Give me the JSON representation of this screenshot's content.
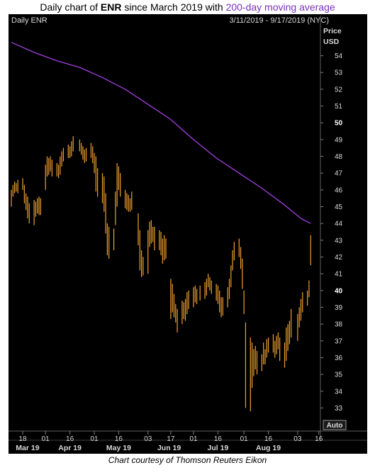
{
  "title": {
    "prefix": "Daily chart of ",
    "ticker": "ENR",
    "middle": " since March 2019 with ",
    "ma_label": "200-day moving average"
  },
  "header": {
    "left": "Daily ENR",
    "right": "3/11/2019 - 9/17/2019 (NYC)"
  },
  "caption": "Chart courtesy of Thomson Reuters Eikon",
  "colors": {
    "price": "#f0a030",
    "ma": "#a040e0",
    "panel": "#000000",
    "axis_text": "#d8d8d8"
  },
  "chart_data": {
    "type": "ohlc",
    "y_axis_title": [
      "Price",
      "USD"
    ],
    "ylim": [
      32.3,
      55.8
    ],
    "y_ticks": [
      33,
      34,
      35,
      36,
      37,
      38,
      39,
      40,
      41,
      42,
      43,
      44,
      45,
      46,
      47,
      48,
      49,
      50,
      51,
      52,
      53,
      54
    ],
    "y_bold_ticks": [
      40,
      50
    ],
    "x_range": [
      "2019-03-11",
      "2019-09-17"
    ],
    "x_ticks": [
      {
        "date": "2019-03-18",
        "label": "18"
      },
      {
        "date": "2019-04-01",
        "label": "01"
      },
      {
        "date": "2019-04-16",
        "label": "16"
      },
      {
        "date": "2019-05-01",
        "label": "01"
      },
      {
        "date": "2019-05-16",
        "label": "16"
      },
      {
        "date": "2019-06-03",
        "label": "03"
      },
      {
        "date": "2019-06-17",
        "label": "17"
      },
      {
        "date": "2019-07-01",
        "label": "01"
      },
      {
        "date": "2019-07-16",
        "label": "16"
      },
      {
        "date": "2019-08-01",
        "label": "01"
      },
      {
        "date": "2019-08-16",
        "label": "16"
      },
      {
        "date": "2019-09-03",
        "label": "03"
      },
      {
        "date": "2019-09-16",
        "label": "16"
      }
    ],
    "month_labels": [
      {
        "date": "2019-03-21",
        "label": "Mar 19"
      },
      {
        "date": "2019-04-16",
        "label": "Apr 19"
      },
      {
        "date": "2019-05-16",
        "label": "May 19"
      },
      {
        "date": "2019-06-16",
        "label": "Jun 19"
      },
      {
        "date": "2019-07-16",
        "label": "Jul 19"
      },
      {
        "date": "2019-08-16",
        "label": "Aug 19"
      }
    ],
    "scale_button": "Auto",
    "series": [
      {
        "name": "ENR",
        "type": "ohlc",
        "points": [
          {
            "date": "2019-03-11",
            "high": 46.0,
            "low": 45.0
          },
          {
            "date": "2019-03-12",
            "high": 46.3,
            "low": 45.6
          },
          {
            "date": "2019-03-13",
            "high": 46.5,
            "low": 45.8
          },
          {
            "date": "2019-03-14",
            "high": 46.4,
            "low": 45.9
          },
          {
            "date": "2019-03-15",
            "high": 46.6,
            "low": 45.8
          },
          {
            "date": "2019-03-18",
            "high": 46.7,
            "low": 46.0
          },
          {
            "date": "2019-03-19",
            "high": 46.3,
            "low": 45.2
          },
          {
            "date": "2019-03-20",
            "high": 45.8,
            "low": 44.8
          },
          {
            "date": "2019-03-21",
            "high": 45.6,
            "low": 44.3
          },
          {
            "date": "2019-03-22",
            "high": 45.2,
            "low": 44.0
          },
          {
            "date": "2019-03-25",
            "high": 45.4,
            "low": 43.9
          },
          {
            "date": "2019-03-26",
            "high": 45.3,
            "low": 44.4
          },
          {
            "date": "2019-03-27",
            "high": 45.5,
            "low": 44.6
          },
          {
            "date": "2019-03-28",
            "high": 45.6,
            "low": 44.5
          },
          {
            "date": "2019-03-29",
            "high": 45.5,
            "low": 44.5
          },
          {
            "date": "2019-04-01",
            "high": 47.5,
            "low": 46.0
          },
          {
            "date": "2019-04-02",
            "high": 48.0,
            "low": 46.8
          },
          {
            "date": "2019-04-03",
            "high": 47.9,
            "low": 46.9
          },
          {
            "date": "2019-04-04",
            "high": 48.0,
            "low": 47.1
          },
          {
            "date": "2019-04-05",
            "high": 47.8,
            "low": 46.8
          },
          {
            "date": "2019-04-08",
            "high": 47.6,
            "low": 46.8
          },
          {
            "date": "2019-04-09",
            "high": 47.5,
            "low": 46.7
          },
          {
            "date": "2019-04-10",
            "high": 48.0,
            "low": 46.9
          },
          {
            "date": "2019-04-11",
            "high": 48.3,
            "low": 47.4
          },
          {
            "date": "2019-04-12",
            "high": 48.5,
            "low": 47.7
          },
          {
            "date": "2019-04-15",
            "high": 48.7,
            "low": 47.9
          },
          {
            "date": "2019-04-16",
            "high": 48.6,
            "low": 47.9
          },
          {
            "date": "2019-04-17",
            "high": 48.9,
            "low": 48.0
          },
          {
            "date": "2019-04-18",
            "high": 49.2,
            "low": 48.3
          },
          {
            "date": "2019-04-22",
            "high": 49.0,
            "low": 48.3
          },
          {
            "date": "2019-04-23",
            "high": 48.8,
            "low": 48.1
          },
          {
            "date": "2019-04-24",
            "high": 48.6,
            "low": 47.8
          },
          {
            "date": "2019-04-25",
            "high": 48.4,
            "low": 47.6
          },
          {
            "date": "2019-04-26",
            "high": 48.5,
            "low": 47.7
          },
          {
            "date": "2019-04-29",
            "high": 48.8,
            "low": 47.9
          },
          {
            "date": "2019-04-30",
            "high": 48.6,
            "low": 47.6
          },
          {
            "date": "2019-05-01",
            "high": 48.2,
            "low": 47.0
          },
          {
            "date": "2019-05-02",
            "high": 48.0,
            "low": 45.9
          },
          {
            "date": "2019-05-03",
            "high": 47.3,
            "low": 45.6
          },
          {
            "date": "2019-05-06",
            "high": 47.0,
            "low": 45.2
          },
          {
            "date": "2019-05-07",
            "high": 46.8,
            "low": 44.7
          },
          {
            "date": "2019-05-08",
            "high": 45.8,
            "low": 43.4
          },
          {
            "date": "2019-05-09",
            "high": 44.0,
            "low": 42.1
          },
          {
            "date": "2019-05-10",
            "high": 43.8,
            "low": 41.9
          },
          {
            "date": "2019-05-13",
            "high": 43.7,
            "low": 42.4
          },
          {
            "date": "2019-05-14",
            "high": 45.9,
            "low": 43.9
          },
          {
            "date": "2019-05-15",
            "high": 47.6,
            "low": 45.0
          },
          {
            "date": "2019-05-16",
            "high": 47.4,
            "low": 46.0
          },
          {
            "date": "2019-05-17",
            "high": 47.0,
            "low": 45.6
          },
          {
            "date": "2019-05-20",
            "high": 46.0,
            "low": 44.9
          },
          {
            "date": "2019-05-21",
            "high": 45.8,
            "low": 44.8
          },
          {
            "date": "2019-05-22",
            "high": 45.7,
            "low": 44.7
          },
          {
            "date": "2019-05-23",
            "high": 45.5,
            "low": 44.7
          },
          {
            "date": "2019-05-24",
            "high": 45.9,
            "low": 44.8
          },
          {
            "date": "2019-05-28",
            "high": 44.6,
            "low": 42.7
          },
          {
            "date": "2019-05-29",
            "high": 43.6,
            "low": 41.2
          },
          {
            "date": "2019-05-30",
            "high": 42.4,
            "low": 40.8
          },
          {
            "date": "2019-05-31",
            "high": 42.0,
            "low": 40.9
          },
          {
            "date": "2019-06-03",
            "high": 43.6,
            "low": 41.0
          },
          {
            "date": "2019-06-04",
            "high": 44.1,
            "low": 42.6
          },
          {
            "date": "2019-06-05",
            "high": 44.2,
            "low": 42.8
          },
          {
            "date": "2019-06-06",
            "high": 43.8,
            "low": 42.9
          },
          {
            "date": "2019-06-07",
            "high": 43.8,
            "low": 42.4
          },
          {
            "date": "2019-06-10",
            "high": 43.6,
            "low": 42.4
          },
          {
            "date": "2019-06-11",
            "high": 43.5,
            "low": 42.1
          },
          {
            "date": "2019-06-12",
            "high": 43.1,
            "low": 41.6
          },
          {
            "date": "2019-06-13",
            "high": 43.3,
            "low": 41.8
          },
          {
            "date": "2019-06-14",
            "high": 43.1,
            "low": 41.9
          },
          {
            "date": "2019-06-17",
            "high": 40.7,
            "low": 38.3
          },
          {
            "date": "2019-06-18",
            "high": 40.4,
            "low": 38.7
          },
          {
            "date": "2019-06-19",
            "high": 39.8,
            "low": 38.4
          },
          {
            "date": "2019-06-20",
            "high": 39.2,
            "low": 38.1
          },
          {
            "date": "2019-06-21",
            "high": 38.9,
            "low": 37.5
          },
          {
            "date": "2019-06-24",
            "high": 39.4,
            "low": 38.0
          },
          {
            "date": "2019-06-25",
            "high": 39.3,
            "low": 38.3
          },
          {
            "date": "2019-06-26",
            "high": 39.5,
            "low": 38.2
          },
          {
            "date": "2019-06-27",
            "high": 39.9,
            "low": 38.6
          },
          {
            "date": "2019-06-28",
            "high": 40.0,
            "low": 38.9
          },
          {
            "date": "2019-07-01",
            "high": 40.2,
            "low": 39.0
          },
          {
            "date": "2019-07-02",
            "high": 40.3,
            "low": 39.3
          },
          {
            "date": "2019-07-03",
            "high": 40.1,
            "low": 39.2
          },
          {
            "date": "2019-07-05",
            "high": 40.3,
            "low": 39.4
          },
          {
            "date": "2019-07-08",
            "high": 40.5,
            "low": 39.5
          },
          {
            "date": "2019-07-09",
            "high": 40.7,
            "low": 39.7
          },
          {
            "date": "2019-07-10",
            "high": 41.0,
            "low": 40.2
          },
          {
            "date": "2019-07-11",
            "high": 40.8,
            "low": 40.0
          },
          {
            "date": "2019-07-12",
            "high": 40.6,
            "low": 39.8
          },
          {
            "date": "2019-07-15",
            "high": 40.4,
            "low": 39.4
          },
          {
            "date": "2019-07-16",
            "high": 40.3,
            "low": 39.2
          },
          {
            "date": "2019-07-17",
            "high": 40.0,
            "low": 38.7
          },
          {
            "date": "2019-07-18",
            "high": 39.6,
            "low": 38.4
          },
          {
            "date": "2019-07-19",
            "high": 39.6,
            "low": 38.5
          },
          {
            "date": "2019-07-22",
            "high": 40.2,
            "low": 39.0
          },
          {
            "date": "2019-07-23",
            "high": 40.7,
            "low": 39.5
          },
          {
            "date": "2019-07-24",
            "high": 41.5,
            "low": 40.2
          },
          {
            "date": "2019-07-25",
            "high": 42.4,
            "low": 41.2
          },
          {
            "date": "2019-07-26",
            "high": 42.9,
            "low": 41.8
          },
          {
            "date": "2019-07-29",
            "high": 43.1,
            "low": 42.0
          },
          {
            "date": "2019-07-30",
            "high": 42.6,
            "low": 41.3
          },
          {
            "date": "2019-07-31",
            "high": 41.9,
            "low": 40.1
          },
          {
            "date": "2019-08-01",
            "high": 40.0,
            "low": 38.6
          },
          {
            "date": "2019-08-02",
            "high": 38.1,
            "low": 33.0
          },
          {
            "date": "2019-08-05",
            "high": 37.2,
            "low": 32.8
          },
          {
            "date": "2019-08-06",
            "high": 36.9,
            "low": 34.2
          },
          {
            "date": "2019-08-07",
            "high": 36.5,
            "low": 34.9
          },
          {
            "date": "2019-08-08",
            "high": 36.7,
            "low": 35.3
          },
          {
            "date": "2019-08-09",
            "high": 36.4,
            "low": 35.0
          },
          {
            "date": "2019-08-12",
            "high": 36.2,
            "low": 35.2
          },
          {
            "date": "2019-08-13",
            "high": 36.9,
            "low": 35.6
          },
          {
            "date": "2019-08-14",
            "high": 36.5,
            "low": 35.6
          },
          {
            "date": "2019-08-15",
            "high": 37.1,
            "low": 36.0
          },
          {
            "date": "2019-08-16",
            "high": 37.2,
            "low": 36.3
          },
          {
            "date": "2019-08-19",
            "high": 37.4,
            "low": 36.3
          },
          {
            "date": "2019-08-20",
            "high": 37.0,
            "low": 36.0
          },
          {
            "date": "2019-08-21",
            "high": 37.3,
            "low": 36.2
          },
          {
            "date": "2019-08-22",
            "high": 37.5,
            "low": 36.5
          },
          {
            "date": "2019-08-23",
            "high": 37.2,
            "low": 35.8
          },
          {
            "date": "2019-08-26",
            "high": 36.9,
            "low": 35.4
          },
          {
            "date": "2019-08-27",
            "high": 37.8,
            "low": 35.8
          },
          {
            "date": "2019-08-28",
            "high": 38.0,
            "low": 36.4
          },
          {
            "date": "2019-08-29",
            "high": 38.2,
            "low": 36.8
          },
          {
            "date": "2019-08-30",
            "high": 38.9,
            "low": 37.2
          },
          {
            "date": "2019-09-03",
            "high": 38.6,
            "low": 37.0
          },
          {
            "date": "2019-09-04",
            "high": 39.0,
            "low": 37.8
          },
          {
            "date": "2019-09-05",
            "high": 39.5,
            "low": 38.2
          },
          {
            "date": "2019-09-06",
            "high": 39.9,
            "low": 38.7
          },
          {
            "date": "2019-09-09",
            "high": 40.0,
            "low": 39.1
          },
          {
            "date": "2019-09-10",
            "high": 40.6,
            "low": 39.6
          },
          {
            "date": "2019-09-11",
            "high": 43.3,
            "low": 41.5
          }
        ]
      },
      {
        "name": "200-day moving average",
        "type": "line",
        "points": [
          {
            "date": "2019-03-11",
            "value": 54.8
          },
          {
            "date": "2019-03-25",
            "value": 54.2
          },
          {
            "date": "2019-04-08",
            "value": 53.7
          },
          {
            "date": "2019-04-22",
            "value": 53.3
          },
          {
            "date": "2019-05-06",
            "value": 52.7
          },
          {
            "date": "2019-05-20",
            "value": 52.0
          },
          {
            "date": "2019-06-03",
            "value": 51.1
          },
          {
            "date": "2019-06-17",
            "value": 50.2
          },
          {
            "date": "2019-07-01",
            "value": 49.0
          },
          {
            "date": "2019-07-15",
            "value": 47.9
          },
          {
            "date": "2019-07-29",
            "value": 47.0
          },
          {
            "date": "2019-08-12",
            "value": 46.1
          },
          {
            "date": "2019-08-26",
            "value": 45.1
          },
          {
            "date": "2019-09-05",
            "value": 44.3
          },
          {
            "date": "2019-09-11",
            "value": 44.0
          }
        ]
      }
    ]
  }
}
